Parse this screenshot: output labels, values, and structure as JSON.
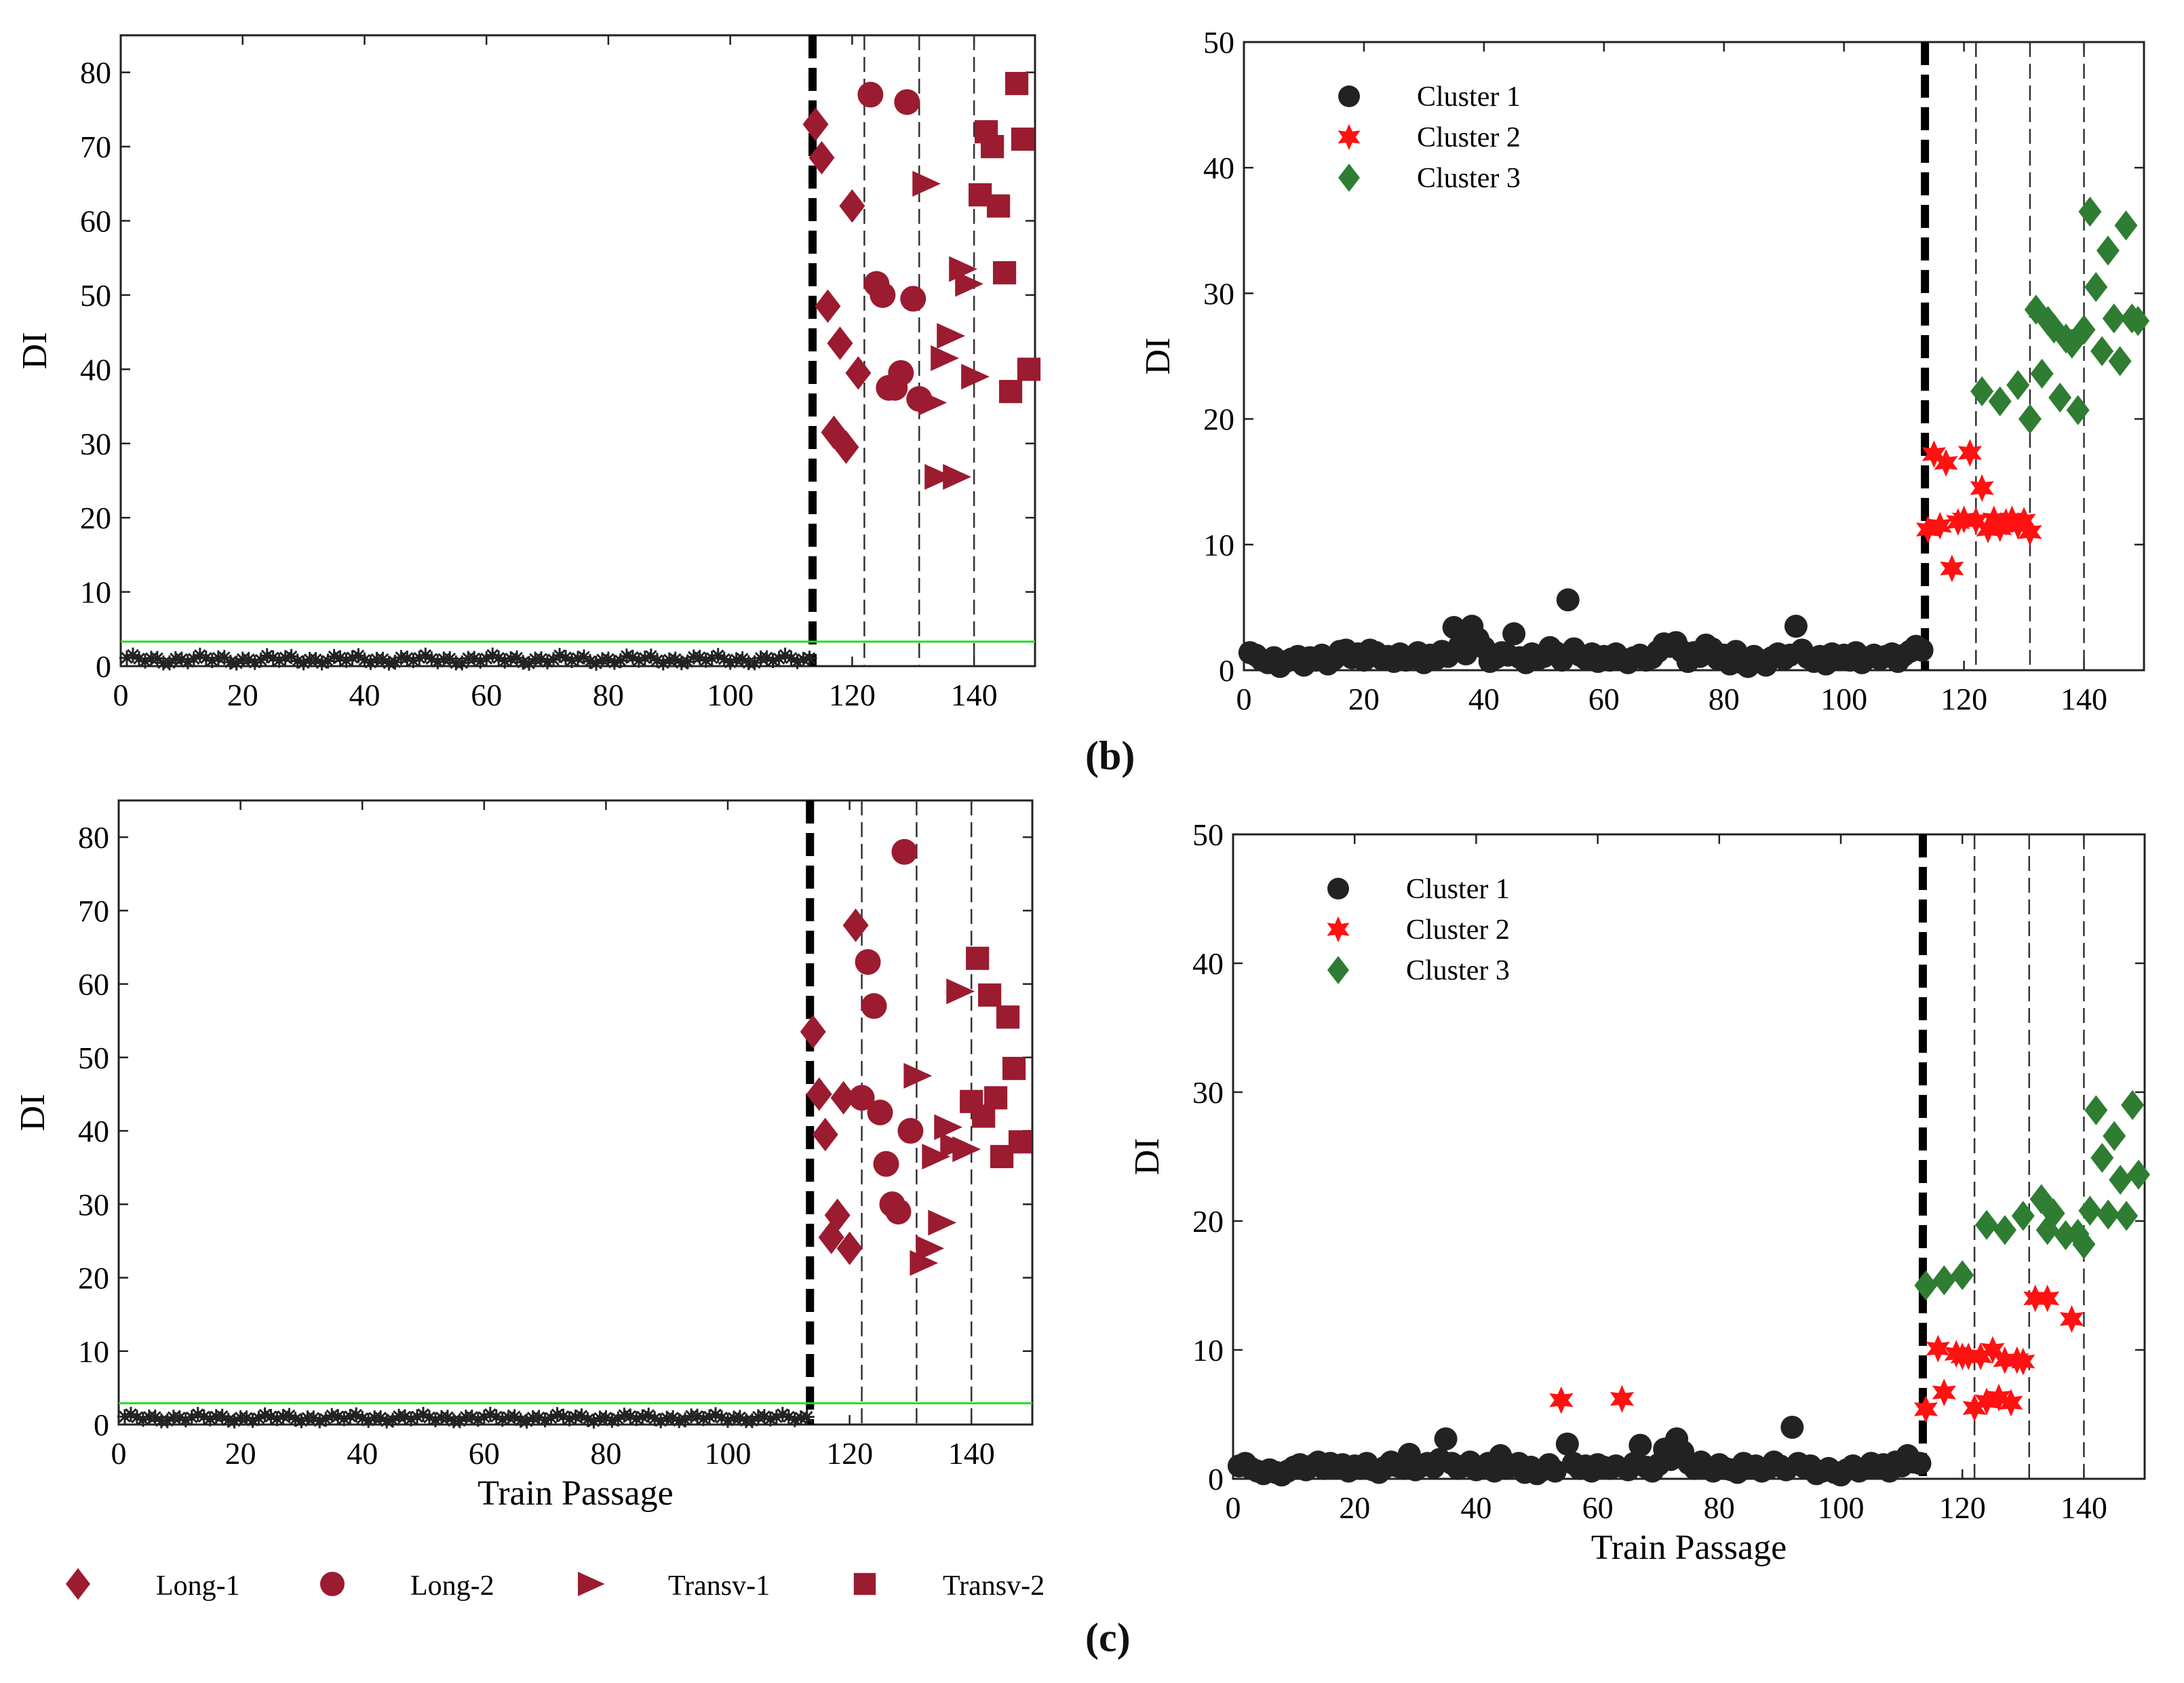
{
  "panel_labels": {
    "b": "(b)",
    "c": "(c)"
  },
  "colors": {
    "maroon": "#9b1b30",
    "black": "#222222",
    "red": "#ff1111",
    "green": "#2e7d32",
    "threshold": "#22dd22"
  },
  "bottom_legend": [
    {
      "marker": "diamond",
      "label": "Long-1"
    },
    {
      "marker": "circle",
      "label": "Long-2"
    },
    {
      "marker": "triangle",
      "label": "Transv-1"
    },
    {
      "marker": "square",
      "label": "Transv-2"
    }
  ],
  "chart_data": [
    {
      "id": "a",
      "type": "scatter",
      "ylabel": "DI",
      "xlabel": "",
      "xlim": [
        0,
        150
      ],
      "ylim": [
        0,
        85
      ],
      "xticks": [
        0,
        20,
        40,
        60,
        80,
        100,
        120,
        140
      ],
      "yticks": [
        0,
        10,
        20,
        30,
        40,
        50,
        60,
        70,
        80
      ],
      "threshold": 3.3,
      "thick_vline": 113.5,
      "thin_vlines": [
        122,
        131,
        140
      ],
      "healthy": {
        "count": 113,
        "mean": 0.9,
        "amplitude": 1.2
      },
      "series": [
        {
          "name": "Long-1",
          "marker": "diamond",
          "x": [
            114,
            115,
            116,
            118,
            119,
            117,
            120,
            121
          ],
          "y": [
            73,
            68.5,
            48.5,
            43.5,
            29.5,
            31.5,
            62,
            39.5
          ]
        },
        {
          "name": "Long-2",
          "marker": "circle",
          "x": [
            123,
            124,
            125,
            126,
            127,
            128,
            129,
            130,
            131
          ],
          "y": [
            77,
            51.5,
            50,
            37.5,
            37.5,
            39.5,
            76,
            49.5,
            36
          ]
        },
        {
          "name": "Transv-1",
          "marker": "triangle",
          "x": [
            132,
            133,
            134,
            135,
            136,
            137,
            138,
            139,
            140
          ],
          "y": [
            65,
            35.5,
            25.5,
            41.5,
            44.5,
            25.5,
            53.5,
            51.5,
            39
          ]
        },
        {
          "name": "Transv-2",
          "marker": "square",
          "x": [
            141,
            142,
            143,
            144,
            145,
            146,
            147,
            148,
            149
          ],
          "y": [
            63.5,
            72,
            70,
            62,
            53,
            37,
            78.5,
            71,
            40
          ]
        }
      ]
    },
    {
      "id": "b",
      "type": "scatter",
      "ylabel": "DI",
      "xlabel": "",
      "xlim": [
        0,
        150
      ],
      "ylim": [
        0,
        50
      ],
      "xticks": [
        0,
        20,
        40,
        60,
        80,
        100,
        120,
        140
      ],
      "yticks": [
        0,
        10,
        20,
        30,
        40,
        50
      ],
      "thick_vline": 113.5,
      "thin_vlines": [
        122,
        131,
        140
      ],
      "legend": [
        {
          "label": "Cluster 1",
          "marker": "circle",
          "color": "#222222"
        },
        {
          "label": "Cluster 2",
          "marker": "star",
          "color": "#ff1111"
        },
        {
          "label": "Cluster 3",
          "marker": "diamond",
          "color": "#2e7d32"
        }
      ],
      "series": [
        {
          "name": "Cluster 1",
          "marker": "circle",
          "color": "#222222",
          "x": [
            1,
            2,
            3,
            4,
            5,
            6,
            7,
            8,
            9,
            10,
            11,
            12,
            13,
            14,
            15,
            16,
            17,
            18,
            19,
            20,
            21,
            22,
            23,
            24,
            25,
            26,
            27,
            28,
            29,
            30,
            31,
            32,
            33,
            34,
            35,
            36,
            37,
            38,
            39,
            40,
            41,
            42,
            43,
            44,
            45,
            46,
            47,
            48,
            49,
            50,
            51,
            52,
            53,
            54,
            55,
            56,
            57,
            58,
            59,
            60,
            61,
            62,
            63,
            64,
            65,
            66,
            67,
            68,
            69,
            70,
            71,
            72,
            73,
            74,
            75,
            76,
            77,
            78,
            79,
            80,
            81,
            82,
            83,
            84,
            85,
            86,
            87,
            88,
            89,
            90,
            91,
            92,
            93,
            94,
            95,
            96,
            97,
            98,
            99,
            100,
            101,
            102,
            103,
            104,
            105,
            106,
            107,
            108,
            109,
            110,
            111,
            112,
            113
          ],
          "y": [
            1.4,
            1.2,
            0.8,
            0.6,
            1.0,
            0.3,
            0.7,
            0.9,
            1.1,
            0.4,
            1.0,
            0.8,
            1.2,
            0.5,
            0.9,
            1.5,
            1.6,
            1.0,
            1.3,
            0.8,
            1.6,
            1.4,
            0.9,
            1.1,
            0.7,
            1.3,
            0.8,
            1.0,
            1.4,
            0.6,
            1.2,
            0.9,
            1.5,
            1.1,
            3.4,
            2.0,
            1.3,
            3.5,
            2.5,
            1.8,
            0.7,
            1.0,
            1.4,
            1.2,
            2.9,
            1.0,
            0.6,
            1.3,
            0.9,
            1.1,
            1.8,
            1.4,
            0.8,
            5.6,
            1.7,
            1.2,
            0.9,
            1.3,
            0.7,
            1.1,
            0.8,
            1.3,
            0.9,
            0.6,
            1.0,
            1.2,
            0.8,
            1.0,
            1.5,
            2.1,
            1.9,
            2.2,
            1.5,
            0.7,
            1.4,
            1.1,
            2.0,
            1.7,
            0.9,
            1.2,
            0.5,
            1.5,
            0.6,
            0.3,
            1.1,
            0.8,
            0.4,
            1.0,
            1.3,
            0.9,
            1.2,
            3.5,
            1.6,
            1.0,
            0.7,
            1.1,
            0.5,
            1.3,
            0.9,
            1.2,
            0.8,
            1.4,
            0.6,
            1.0,
            1.2,
            0.9,
            1.1,
            1.3,
            0.7,
            1.2,
            1.5,
            1.9,
            1.6
          ]
        },
        {
          "name": "Cluster 2",
          "marker": "star",
          "color": "#ff1111",
          "x": [
            114,
            115,
            116,
            117,
            118,
            119,
            120,
            121,
            122,
            123,
            124,
            125,
            126,
            127,
            128,
            129,
            130,
            131
          ],
          "y": [
            11.2,
            17.2,
            11.5,
            16.5,
            8.1,
            11.8,
            12.0,
            17.3,
            11.9,
            14.5,
            11.2,
            12.0,
            11.3,
            11.8,
            12.0,
            11.5,
            11.9,
            11.0
          ]
        },
        {
          "name": "Cluster 3",
          "marker": "diamond",
          "color": "#2e7d32",
          "x": [
            123,
            126,
            129,
            131,
            132,
            133,
            134,
            135,
            136,
            137,
            138,
            139,
            140,
            141,
            142,
            143,
            144,
            145,
            146,
            147,
            148,
            149
          ],
          "y": [
            22.2,
            21.4,
            22.7,
            20.0,
            28.7,
            23.6,
            27.8,
            27.2,
            21.7,
            26.4,
            26.0,
            20.7,
            27.1,
            36.5,
            30.5,
            25.4,
            33.4,
            28.0,
            24.6,
            35.4,
            28.0,
            27.8
          ]
        }
      ]
    },
    {
      "id": "c",
      "type": "scatter",
      "ylabel": "DI",
      "xlabel": "Train Passage",
      "xlim": [
        0,
        150
      ],
      "ylim": [
        0,
        85
      ],
      "xticks": [
        0,
        20,
        40,
        60,
        80,
        100,
        120,
        140
      ],
      "yticks": [
        0,
        10,
        20,
        30,
        40,
        50,
        60,
        70,
        80
      ],
      "threshold": 2.9,
      "thick_vline": 113.5,
      "thin_vlines": [
        122,
        131,
        140
      ],
      "healthy": {
        "count": 113,
        "mean": 0.9,
        "amplitude": 1.0
      },
      "series": [
        {
          "name": "Long-1",
          "marker": "diamond",
          "x": [
            114,
            115,
            116,
            117,
            118,
            119,
            120,
            121
          ],
          "y": [
            53.5,
            45,
            39.5,
            25.5,
            28.5,
            44.5,
            24,
            68
          ]
        },
        {
          "name": "Long-2",
          "marker": "circle",
          "x": [
            122,
            123,
            124,
            125,
            126,
            127,
            128,
            129,
            130
          ],
          "y": [
            44.5,
            63,
            57,
            42.5,
            35.5,
            30,
            29,
            78,
            40
          ]
        },
        {
          "name": "Transv-1",
          "marker": "triangle",
          "x": [
            131,
            132,
            133,
            134,
            135,
            136,
            137,
            138,
            139
          ],
          "y": [
            47.5,
            22,
            24,
            36.5,
            27.5,
            40.5,
            38,
            59,
            37.5
          ]
        },
        {
          "name": "Transv-2",
          "marker": "square",
          "x": [
            140,
            141,
            142,
            143,
            144,
            145,
            146,
            147,
            148
          ],
          "y": [
            44,
            63.5,
            42,
            58.5,
            44.5,
            36.5,
            55.5,
            48.5,
            38.5
          ]
        }
      ]
    },
    {
      "id": "d",
      "type": "scatter",
      "ylabel": "DI",
      "xlabel": "Train Passage",
      "xlim": [
        0,
        150
      ],
      "ylim": [
        0,
        50
      ],
      "xticks": [
        0,
        20,
        40,
        60,
        80,
        100,
        120,
        140
      ],
      "yticks": [
        0,
        10,
        20,
        30,
        40,
        50
      ],
      "thick_vline": 113.5,
      "thin_vlines": [
        122,
        131,
        140
      ],
      "legend": [
        {
          "label": "Cluster 1",
          "marker": "circle",
          "color": "#222222"
        },
        {
          "label": "Cluster 2",
          "marker": "star",
          "color": "#ff1111"
        },
        {
          "label": "Cluster 3",
          "marker": "diamond",
          "color": "#2e7d32"
        }
      ],
      "series": [
        {
          "name": "Cluster 1",
          "marker": "circle",
          "color": "#222222",
          "x": [
            1,
            2,
            3,
            4,
            5,
            6,
            7,
            8,
            9,
            10,
            11,
            12,
            13,
            14,
            15,
            16,
            17,
            18,
            19,
            20,
            21,
            22,
            23,
            24,
            25,
            26,
            27,
            28,
            29,
            30,
            31,
            32,
            33,
            34,
            35,
            36,
            37,
            38,
            39,
            40,
            41,
            42,
            43,
            44,
            45,
            46,
            47,
            48,
            49,
            50,
            51,
            52,
            53,
            55,
            56,
            57,
            58,
            59,
            60,
            61,
            62,
            63,
            65,
            66,
            67,
            68,
            69,
            70,
            71,
            72,
            73,
            74,
            75,
            76,
            77,
            78,
            79,
            80,
            81,
            82,
            83,
            84,
            85,
            86,
            87,
            88,
            89,
            90,
            91,
            92,
            93,
            94,
            95,
            96,
            97,
            98,
            99,
            100,
            101,
            102,
            103,
            104,
            105,
            106,
            107,
            108,
            109,
            110,
            111,
            112,
            113
          ],
          "y": [
            1.0,
            1.2,
            0.8,
            0.6,
            0.4,
            0.7,
            0.5,
            0.3,
            0.6,
            0.9,
            1.1,
            0.7,
            1.0,
            1.3,
            0.8,
            1.2,
            0.9,
            1.1,
            0.6,
            1.0,
            0.8,
            1.2,
            0.7,
            0.5,
            0.9,
            1.3,
            1.0,
            0.8,
            1.9,
            0.7,
            1.0,
            1.2,
            0.9,
            1.5,
            3.1,
            1.2,
            0.8,
            1.0,
            1.3,
            0.7,
            0.9,
            1.2,
            0.6,
            1.8,
            0.8,
            1.0,
            1.2,
            0.5,
            0.9,
            0.4,
            0.7,
            1.1,
            0.6,
            2.7,
            1.2,
            0.8,
            1.0,
            0.6,
            1.1,
            0.9,
            0.8,
            1.0,
            0.7,
            1.2,
            2.6,
            0.9,
            0.6,
            1.1,
            2.3,
            1.5,
            3.1,
            2.1,
            1.2,
            0.8,
            1.3,
            0.9,
            0.6,
            1.1,
            0.8,
            0.7,
            0.5,
            1.2,
            0.9,
            1.0,
            0.6,
            0.8,
            1.3,
            1.0,
            0.7,
            4.0,
            1.2,
            0.9,
            1.0,
            0.4,
            0.6,
            0.8,
            0.5,
            0.3,
            0.7,
            1.0,
            0.6,
            0.8,
            1.2,
            0.9,
            1.1,
            0.6,
            1.3,
            1.0,
            1.8,
            1.3,
            1.2
          ]
        },
        {
          "name": "Cluster 2",
          "marker": "star",
          "color": "#ff1111",
          "x": [
            54,
            64,
            114,
            116,
            117,
            119,
            120,
            121,
            122,
            123,
            124,
            125,
            126,
            127,
            128,
            129,
            130,
            132,
            134,
            138
          ],
          "y": [
            6.1,
            6.2,
            5.4,
            10.1,
            6.7,
            9.7,
            9.5,
            9.5,
            5.5,
            9.5,
            6.0,
            10.0,
            6.3,
            9.2,
            5.9,
            9.2,
            9.1,
            14.0,
            14.0,
            12.4
          ]
        },
        {
          "name": "Cluster 3",
          "marker": "diamond",
          "color": "#2e7d32",
          "x": [
            114,
            117,
            120,
            124,
            127,
            130,
            133,
            134,
            135,
            137,
            139,
            140,
            141,
            142,
            143,
            144,
            145,
            146,
            147,
            148,
            149
          ],
          "y": [
            15.0,
            15.4,
            15.8,
            19.7,
            19.3,
            20.4,
            21.7,
            19.3,
            20.6,
            18.9,
            19.0,
            18.2,
            20.8,
            28.6,
            24.9,
            20.5,
            26.6,
            23.2,
            20.4,
            29.0,
            23.6
          ]
        }
      ]
    }
  ]
}
